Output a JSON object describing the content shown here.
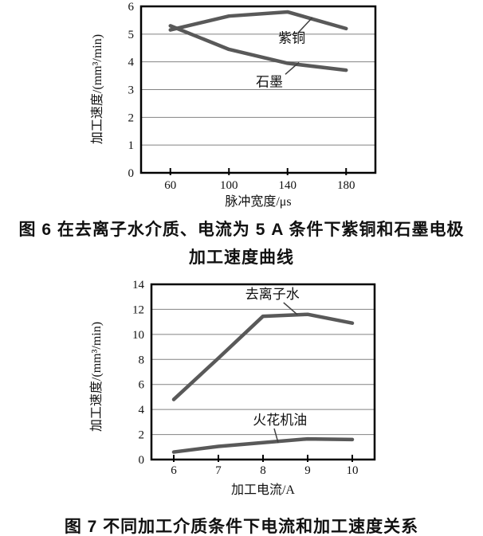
{
  "figure6": {
    "caption_line1": "图 6  在去离子水介质、电流为 5 A 条件下紫铜和石墨电极",
    "caption_line2": "加工速度曲线"
  },
  "figure7": {
    "caption": "图 7  不同加工介质条件下电流和加工速度关系"
  },
  "colors": {
    "series_line": "#595959",
    "gridline": "#828282",
    "axis": "#000000",
    "leader_line": "#404040",
    "text": "#111111"
  },
  "chart_data": [
    {
      "type": "line",
      "title": "",
      "xlabel": "脉冲宽度/μs",
      "ylabel": "加工速度/(mm³/min)",
      "x": [
        60,
        100,
        140,
        180
      ],
      "series": [
        {
          "name": "紫铜",
          "values": [
            5.15,
            5.65,
            5.8,
            5.2
          ]
        },
        {
          "name": "石墨",
          "values": [
            5.3,
            4.45,
            3.95,
            3.7
          ]
        }
      ],
      "xlim": [
        40,
        200
      ],
      "ylim": [
        0,
        6
      ],
      "xticks": [
        60,
        100,
        140,
        180
      ],
      "yticks": [
        0,
        1,
        2,
        3,
        4,
        5,
        6
      ],
      "grid": true,
      "legend_position": "inline-annotations",
      "annotations": [
        {
          "label": "紫铜",
          "text_x": 142.9,
          "text_y": 4.86,
          "line_from_x": 147.8,
          "line_from_y": 5.08,
          "line_to_x": 157,
          "line_to_y": 5.6
        },
        {
          "label": "石墨",
          "text_x": 127.6,
          "text_y": 3.28,
          "line_from_x": 138.5,
          "line_from_y": 3.55,
          "line_to_x": 147.8,
          "line_to_y": 3.98
        }
      ]
    },
    {
      "type": "line",
      "title": "",
      "xlabel": "加工电流/A",
      "ylabel": "加工速度/(mm³/min)",
      "x": [
        6,
        7,
        8,
        9,
        10
      ],
      "series": [
        {
          "name": "去离子水",
          "values": [
            4.8,
            8.1,
            11.45,
            11.6,
            10.9
          ]
        },
        {
          "name": "火花机油",
          "values": [
            0.6,
            1.05,
            1.35,
            1.65,
            1.6
          ]
        }
      ],
      "xlim": [
        5.5,
        10.5
      ],
      "ylim": [
        0,
        14
      ],
      "xticks": [
        6,
        7,
        8,
        9,
        10
      ],
      "yticks": [
        0,
        2,
        4,
        6,
        8,
        10,
        12,
        14
      ],
      "grid": true,
      "legend_position": "inline-annotations",
      "annotations": [
        {
          "label": "去离子水",
          "text_x": 8.21,
          "text_y": 13.24,
          "line_from_x": 8.46,
          "line_from_y": 12.54,
          "line_to_x": 8.77,
          "line_to_y": 11.58
        },
        {
          "label": "火花机油",
          "text_x": 8.38,
          "text_y": 3.18,
          "line_from_x": 8.25,
          "line_from_y": 2.48,
          "line_to_x": 8.34,
          "line_to_y": 1.34
        }
      ]
    }
  ]
}
